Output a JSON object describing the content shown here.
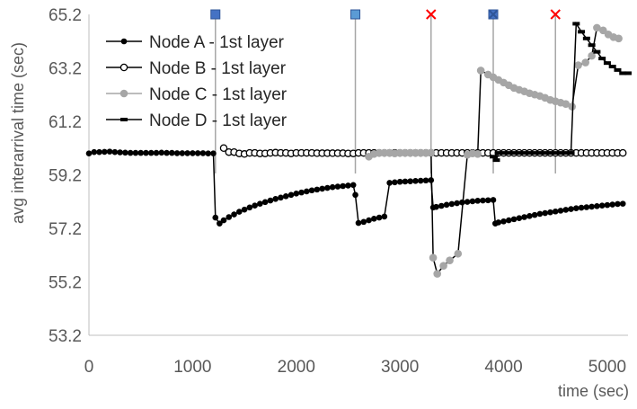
{
  "chart_data": {
    "type": "line",
    "title": "",
    "xlabel": "time (sec)",
    "ylabel": "avg interarrival time (sec)",
    "xlim": [
      0,
      5200
    ],
    "ylim": [
      53.2,
      65.2
    ],
    "x_ticks": [
      0,
      1000,
      2000,
      3000,
      4000,
      5000
    ],
    "x_tick_labels": [
      "0",
      "1000",
      "2000",
      "3000",
      "4000",
      "5000"
    ],
    "y_ticks": [
      53.2,
      55.2,
      57.2,
      59.2,
      61.2,
      63.2,
      65.2
    ],
    "y_tick_labels": [
      "53.2",
      "55.2",
      "57.2",
      "59.2",
      "61.2",
      "63.2",
      "65.2"
    ],
    "grid": false,
    "legend_position": "top-left",
    "colors": {
      "node_a": "#000000",
      "node_b": "#000000",
      "node_c": "#a6a6a6",
      "node_c_line": "#000000",
      "node_d": "#000000",
      "event_line": "#a6a6a6",
      "square_marker_dark": "#4472c4",
      "square_marker_light": "#5b9bd5",
      "cross_marker": "#ff0000"
    },
    "events": [
      {
        "x": 1220,
        "marker": "square-dark"
      },
      {
        "x": 2570,
        "marker": "square-light"
      },
      {
        "x": 3300,
        "marker": "cross"
      },
      {
        "x": 3900,
        "marker": "square-cross"
      },
      {
        "x": 4500,
        "marker": "cross"
      }
    ],
    "series": [
      {
        "name": "Node A - 1st layer",
        "marker": "filled-circle",
        "x": [
          0,
          50,
          100,
          150,
          200,
          250,
          300,
          350,
          400,
          450,
          500,
          550,
          600,
          650,
          700,
          750,
          800,
          850,
          900,
          950,
          1000,
          1050,
          1100,
          1150,
          1200,
          1220,
          1260,
          1300,
          1350,
          1400,
          1450,
          1500,
          1550,
          1600,
          1650,
          1700,
          1750,
          1800,
          1850,
          1900,
          1950,
          2000,
          2050,
          2100,
          2150,
          2200,
          2250,
          2300,
          2350,
          2400,
          2450,
          2500,
          2550,
          2570,
          2600,
          2650,
          2700,
          2750,
          2800,
          2850,
          2900,
          2950,
          3000,
          3050,
          3100,
          3150,
          3200,
          3250,
          3300,
          3320,
          3350,
          3400,
          3450,
          3500,
          3550,
          3600,
          3650,
          3700,
          3750,
          3800,
          3850,
          3900,
          3920,
          3950,
          4000,
          4050,
          4100,
          4150,
          4200,
          4250,
          4300,
          4350,
          4400,
          4450,
          4500,
          4550,
          4600,
          4650,
          4700,
          4750,
          4800,
          4850,
          4900,
          4950,
          5000,
          5050,
          5100,
          5150
        ],
        "y": [
          60.0,
          60.05,
          60.05,
          60.06,
          60.07,
          60.05,
          60.04,
          60.03,
          60.02,
          60.02,
          60.02,
          60.02,
          60.02,
          60.02,
          60.03,
          60.02,
          60.02,
          60.01,
          60.01,
          60.01,
          60.01,
          60.01,
          60.01,
          60.0,
          60.0,
          57.6,
          57.38,
          57.5,
          57.62,
          57.72,
          57.82,
          57.9,
          57.98,
          58.05,
          58.12,
          58.18,
          58.24,
          58.3,
          58.35,
          58.4,
          58.45,
          58.5,
          58.54,
          58.58,
          58.62,
          58.65,
          58.68,
          58.71,
          58.74,
          58.76,
          58.78,
          58.8,
          58.82,
          58.45,
          57.4,
          57.44,
          57.5,
          57.56,
          57.6,
          57.64,
          58.9,
          58.92,
          58.94,
          58.95,
          58.96,
          58.97,
          58.98,
          58.99,
          59.0,
          57.98,
          58.0,
          58.04,
          58.08,
          58.11,
          58.14,
          58.17,
          58.19,
          58.21,
          58.23,
          58.24,
          58.25,
          58.26,
          57.38,
          57.42,
          57.46,
          57.5,
          57.54,
          57.58,
          57.62,
          57.66,
          57.7,
          57.74,
          57.77,
          57.8,
          57.83,
          57.86,
          57.89,
          57.92,
          57.95,
          57.97,
          57.99,
          58.01,
          58.03,
          58.05,
          58.07,
          58.09,
          58.11,
          58.12
        ]
      },
      {
        "name": "Node B - 1st layer",
        "marker": "open-circle",
        "x": [
          1300,
          1350,
          1400,
          1450,
          1500,
          1550,
          1600,
          1650,
          1700,
          1750,
          1800,
          1850,
          1900,
          1950,
          2000,
          2050,
          2100,
          2150,
          2200,
          2250,
          2300,
          2350,
          2400,
          2450,
          2500,
          2550,
          2600,
          2650,
          2700,
          2750,
          2800,
          2850,
          2900,
          2950,
          3000,
          3050,
          3100,
          3150,
          3200,
          3250,
          3300,
          3350,
          3400,
          3450,
          3500,
          3550,
          3600,
          3650,
          3700,
          3750,
          3800,
          3850,
          3900,
          3950,
          4000,
          4050,
          4100,
          4150,
          4200,
          4250,
          4300,
          4350,
          4400,
          4450,
          4500,
          4550,
          4600,
          4650,
          4700,
          4750,
          4800,
          4850,
          4900,
          4950,
          5000,
          5050,
          5100,
          5150
        ],
        "y": [
          60.2,
          60.05,
          60.05,
          60.0,
          59.98,
          60.02,
          60.02,
          60.0,
          60.0,
          60.02,
          60.03,
          60.02,
          60.02,
          60.0,
          60.02,
          60.02,
          60.02,
          60.02,
          60.01,
          60.01,
          60.01,
          60.01,
          60.01,
          60.01,
          60.0,
          60.0,
          60.02,
          60.02,
          60.02,
          60.02,
          60.02,
          60.02,
          60.02,
          60.02,
          60.02,
          60.02,
          60.02,
          60.02,
          60.02,
          60.02,
          60.02,
          60.02,
          60.02,
          60.02,
          60.02,
          60.02,
          60.02,
          60.02,
          60.02,
          60.02,
          60.02,
          60.02,
          60.02,
          60.02,
          60.02,
          60.02,
          60.02,
          60.02,
          60.02,
          60.02,
          60.02,
          60.02,
          60.02,
          60.02,
          60.02,
          60.02,
          60.02,
          60.02,
          60.02,
          60.02,
          60.02,
          60.02,
          60.02,
          60.02,
          60.02,
          60.02,
          60.02,
          60.02
        ]
      },
      {
        "name": "Node C - 1st layer",
        "marker": "gray-circle",
        "x": [
          2700,
          2750,
          2800,
          2850,
          2900,
          2950,
          3000,
          3050,
          3100,
          3150,
          3200,
          3250,
          3300,
          3320,
          3360,
          3420,
          3480,
          3560,
          3650,
          3700,
          3750,
          3780,
          3850,
          3900,
          3950,
          4000,
          4050,
          4100,
          4150,
          4200,
          4250,
          4300,
          4350,
          4400,
          4450,
          4500,
          4550,
          4600,
          4660,
          4720,
          4790,
          4850,
          4900,
          4960,
          5010,
          5060,
          5110
        ],
        "y": [
          59.88,
          59.98,
          60.02,
          60.02,
          60.02,
          60.0,
          60.02,
          60.02,
          60.02,
          60.02,
          60.02,
          60.02,
          60.03,
          56.1,
          55.5,
          55.8,
          56.0,
          56.25,
          59.95,
          60.0,
          59.98,
          63.1,
          62.95,
          62.85,
          62.75,
          62.65,
          62.55,
          62.45,
          62.38,
          62.32,
          62.25,
          62.2,
          62.15,
          62.08,
          62.0,
          61.95,
          61.9,
          61.85,
          61.75,
          63.3,
          63.4,
          63.65,
          64.7,
          64.6,
          64.45,
          64.35,
          64.3
        ]
      },
      {
        "name": "Node D - 1st layer",
        "marker": "dash",
        "x": [
          3900,
          3930,
          3950,
          4000,
          4050,
          4100,
          4150,
          4200,
          4250,
          4300,
          4350,
          4400,
          4450,
          4500,
          4550,
          4600,
          4650,
          4700,
          4750,
          4800,
          4850,
          4900,
          4950,
          5000,
          5050,
          5100,
          5150,
          5200
        ],
        "y": [
          59.88,
          59.75,
          60.02,
          60.02,
          60.02,
          60.02,
          60.02,
          60.02,
          60.02,
          60.02,
          60.02,
          60.02,
          60.02,
          60.02,
          60.02,
          60.02,
          60.02,
          64.85,
          64.55,
          64.3,
          64.05,
          63.8,
          63.55,
          63.38,
          63.25,
          63.12,
          63.0,
          63.0
        ]
      }
    ]
  }
}
